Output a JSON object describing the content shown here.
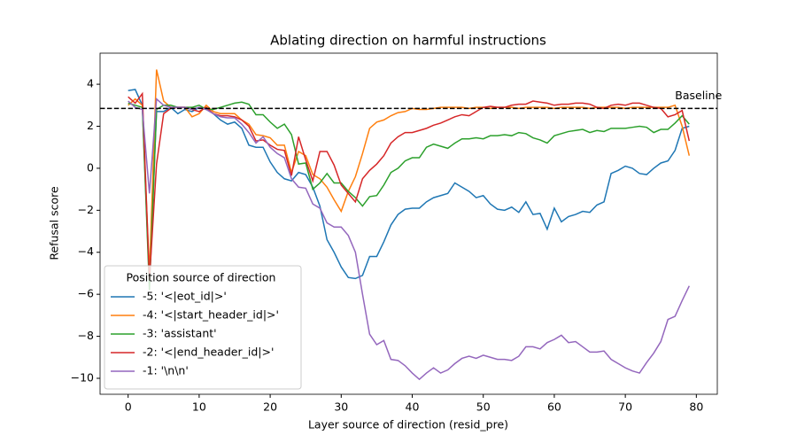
{
  "chart_data": {
    "type": "line",
    "title": "Ablating direction on harmful instructions",
    "x_label": "Layer source of direction (resid_pre)",
    "y_label": "Refusal score",
    "legend_title": "Position source of direction",
    "legend_position": "lower left",
    "baseline": {
      "value": 2.85,
      "label": "Baseline"
    },
    "xlim": [
      -3.95,
      82.95
    ],
    "ylim": [
      -10.76,
      5.48
    ],
    "xticks": [
      0,
      10,
      20,
      30,
      40,
      50,
      60,
      70,
      80
    ],
    "yticks": [
      {
        "value": -10,
        "label": "−10"
      },
      {
        "value": -8,
        "label": "−8"
      },
      {
        "value": -6,
        "label": "−6"
      },
      {
        "value": -4,
        "label": "−4"
      },
      {
        "value": -2,
        "label": "−2"
      },
      0,
      2,
      4
    ],
    "x": [
      0,
      1,
      2,
      3,
      4,
      5,
      6,
      7,
      8,
      9,
      10,
      11,
      12,
      13,
      14,
      15,
      16,
      17,
      18,
      19,
      20,
      21,
      22,
      23,
      24,
      25,
      26,
      27,
      28,
      29,
      30,
      31,
      32,
      33,
      34,
      35,
      36,
      37,
      38,
      39,
      40,
      41,
      42,
      43,
      44,
      45,
      46,
      47,
      48,
      49,
      50,
      51,
      52,
      53,
      54,
      55,
      56,
      57,
      58,
      59,
      60,
      61,
      62,
      63,
      64,
      65,
      66,
      67,
      68,
      69,
      70,
      71,
      72,
      73,
      74,
      75,
      76,
      77,
      78,
      79
    ],
    "series": [
      {
        "name": "-5: '<|eot_id|>'",
        "color": "#1f77b4",
        "values": [
          3.7,
          3.75,
          3.0,
          -5.5,
          2.7,
          2.7,
          2.9,
          2.6,
          2.8,
          2.7,
          2.9,
          2.8,
          2.6,
          2.3,
          2.1,
          2.2,
          1.9,
          1.1,
          1.0,
          1.0,
          0.3,
          -0.2,
          -0.5,
          -0.6,
          -0.2,
          -0.3,
          -0.9,
          -1.8,
          -3.4,
          -4.0,
          -4.7,
          -5.2,
          -5.25,
          -5.1,
          -4.2,
          -4.2,
          -3.5,
          -2.7,
          -2.2,
          -1.95,
          -1.9,
          -1.9,
          -1.6,
          -1.4,
          -1.3,
          -1.2,
          -0.7,
          -0.9,
          -1.1,
          -1.4,
          -1.3,
          -1.7,
          -1.95,
          -2.0,
          -1.85,
          -2.1,
          -1.6,
          -2.2,
          -2.15,
          -2.9,
          -1.9,
          -2.55,
          -2.3,
          -2.2,
          -2.05,
          -2.1,
          -1.75,
          -1.6,
          -0.25,
          -0.1,
          0.1,
          0.0,
          -0.25,
          -0.3,
          0.0,
          0.25,
          0.35,
          0.85,
          1.9,
          2.0
        ]
      },
      {
        "name": "-4: '<|start_header_id|>'",
        "color": "#ff7f0e",
        "values": [
          3.0,
          3.3,
          3.0,
          -5.0,
          4.7,
          3.2,
          2.9,
          2.9,
          2.9,
          2.45,
          2.6,
          3.0,
          2.7,
          2.6,
          2.6,
          2.6,
          2.3,
          2.1,
          1.6,
          1.55,
          1.45,
          1.1,
          1.1,
          -0.2,
          0.8,
          0.6,
          -0.3,
          -0.5,
          -0.9,
          -1.5,
          -2.05,
          -1.1,
          -0.4,
          0.7,
          1.9,
          2.2,
          2.3,
          2.5,
          2.65,
          2.7,
          2.85,
          2.8,
          2.8,
          2.85,
          2.9,
          2.9,
          2.9,
          2.9,
          2.85,
          2.9,
          2.9,
          2.85,
          2.9,
          2.9,
          2.9,
          2.85,
          2.9,
          2.9,
          2.9,
          2.9,
          2.85,
          2.9,
          2.9,
          2.9,
          2.9,
          2.85,
          2.9,
          2.9,
          2.9,
          2.9,
          2.85,
          2.9,
          2.9,
          2.9,
          2.9,
          2.9,
          2.9,
          3.0,
          2.0,
          0.6
        ]
      },
      {
        "name": "-3: 'assistant'",
        "color": "#2ca02c",
        "values": [
          3.1,
          3.0,
          2.9,
          -5.8,
          2.8,
          3.0,
          3.0,
          2.9,
          2.9,
          2.9,
          3.0,
          2.8,
          2.8,
          2.9,
          3.0,
          3.1,
          3.15,
          3.05,
          2.55,
          2.55,
          2.2,
          1.9,
          2.1,
          1.6,
          0.2,
          0.25,
          -1.0,
          -0.7,
          -0.25,
          -0.7,
          -0.7,
          -1.1,
          -1.4,
          -1.8,
          -1.35,
          -1.3,
          -0.8,
          -0.2,
          0.0,
          0.35,
          0.5,
          0.5,
          1.0,
          1.15,
          1.05,
          0.95,
          1.2,
          1.4,
          1.4,
          1.45,
          1.4,
          1.55,
          1.55,
          1.6,
          1.55,
          1.7,
          1.65,
          1.45,
          1.35,
          1.2,
          1.55,
          1.65,
          1.75,
          1.8,
          1.85,
          1.7,
          1.8,
          1.75,
          1.9,
          1.9,
          1.9,
          1.95,
          2.0,
          1.95,
          1.7,
          1.85,
          1.85,
          2.15,
          2.5,
          2.1
        ]
      },
      {
        "name": "-2: '<|end_header_id|>'",
        "color": "#d62728",
        "values": [
          3.4,
          3.1,
          3.55,
          -5.3,
          0.2,
          2.6,
          2.85,
          2.9,
          2.9,
          2.8,
          2.7,
          2.9,
          2.6,
          2.5,
          2.5,
          2.45,
          2.3,
          2.0,
          1.3,
          1.35,
          1.1,
          0.9,
          0.85,
          -0.35,
          1.5,
          0.4,
          -0.6,
          0.8,
          0.8,
          0.15,
          -0.8,
          -1.2,
          -1.6,
          -0.5,
          -0.1,
          0.2,
          0.6,
          1.2,
          1.5,
          1.7,
          1.7,
          1.8,
          1.9,
          2.05,
          2.15,
          2.3,
          2.45,
          2.55,
          2.5,
          2.7,
          2.9,
          2.95,
          2.9,
          2.9,
          3.0,
          3.05,
          3.05,
          3.2,
          3.15,
          3.1,
          3.0,
          3.05,
          3.05,
          3.1,
          3.1,
          3.05,
          2.9,
          2.85,
          3.0,
          3.05,
          3.0,
          3.1,
          3.1,
          3.0,
          2.9,
          2.85,
          2.45,
          2.55,
          2.75,
          1.3
        ]
      },
      {
        "name": "-1: '\\n\\n'",
        "color": "#9467bd",
        "values": [
          3.2,
          2.9,
          2.8,
          -1.2,
          3.3,
          3.0,
          2.9,
          2.9,
          2.9,
          2.8,
          2.9,
          2.8,
          2.6,
          2.45,
          2.4,
          2.4,
          2.1,
          1.7,
          1.2,
          1.5,
          1.0,
          0.7,
          0.5,
          -0.5,
          -0.9,
          -0.95,
          -1.7,
          -1.9,
          -2.6,
          -2.8,
          -2.8,
          -3.2,
          -4.0,
          -6.0,
          -7.9,
          -8.4,
          -8.2,
          -9.1,
          -9.15,
          -9.4,
          -9.75,
          -10.05,
          -9.75,
          -9.5,
          -9.75,
          -9.6,
          -9.3,
          -9.05,
          -8.95,
          -9.05,
          -8.9,
          -9.0,
          -9.1,
          -9.1,
          -9.15,
          -8.95,
          -8.5,
          -8.5,
          -8.6,
          -8.3,
          -8.15,
          -7.95,
          -8.3,
          -8.25,
          -8.5,
          -8.75,
          -8.75,
          -8.7,
          -9.1,
          -9.3,
          -9.5,
          -9.65,
          -9.75,
          -9.25,
          -8.8,
          -8.25,
          -7.2,
          -7.05,
          -6.3,
          -5.6
        ]
      }
    ]
  }
}
